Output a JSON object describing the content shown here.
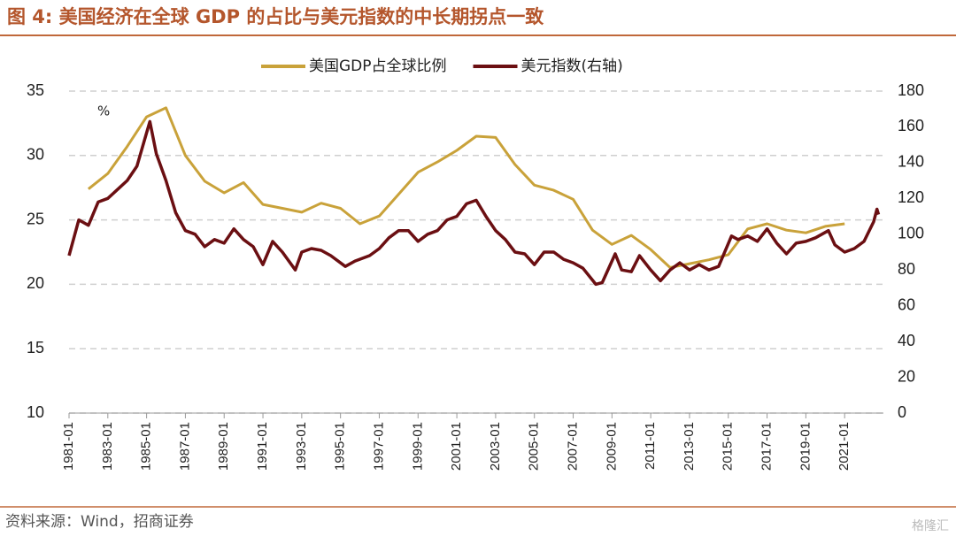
{
  "chart_data": {
    "type": "line",
    "title": "图 4:  美国经济在全球 GDP 的占比与美元指数的中长期拐点一致",
    "unit_label": "%",
    "source": "资料来源：Wind，招商证券",
    "watermark": "格隆汇",
    "xlim": [
      "1981-01",
      "2023-01"
    ],
    "xticks": [
      "1981-01",
      "1983-01",
      "1985-01",
      "1987-01",
      "1989-01",
      "1991-01",
      "1993-01",
      "1995-01",
      "1997-01",
      "1999-01",
      "2001-01",
      "2003-01",
      "2005-01",
      "2007-01",
      "2009-01",
      "2011-01",
      "2013-01",
      "2015-01",
      "2017-01",
      "2019-01",
      "2021-01"
    ],
    "ylim": [
      10,
      35
    ],
    "yticks": [
      10,
      15,
      20,
      25,
      30,
      35
    ],
    "y2lim": [
      0,
      180
    ],
    "y2ticks": [
      0,
      20,
      40,
      60,
      80,
      100,
      120,
      140,
      160,
      180
    ],
    "grid": true,
    "series": [
      {
        "name": "美国GDP占全球比例",
        "color": "#c9a23a",
        "axis": "y",
        "x": [
          "1982-01",
          "1983-01",
          "1984-01",
          "1985-01",
          "1986-01",
          "1987-01",
          "1988-01",
          "1989-01",
          "1990-01",
          "1991-01",
          "1992-01",
          "1993-01",
          "1994-01",
          "1995-01",
          "1996-01",
          "1997-01",
          "1998-01",
          "1999-01",
          "2000-01",
          "2001-01",
          "2002-01",
          "2003-01",
          "2004-01",
          "2005-01",
          "2006-01",
          "2007-01",
          "2008-01",
          "2009-01",
          "2010-01",
          "2011-01",
          "2012-01",
          "2013-01",
          "2014-01",
          "2015-01",
          "2016-01",
          "2017-01",
          "2018-01",
          "2019-01",
          "2020-01",
          "2021-01"
        ],
        "values": [
          27.4,
          28.6,
          30.7,
          33.0,
          33.7,
          30.0,
          28.0,
          27.1,
          27.9,
          26.2,
          25.9,
          25.6,
          26.3,
          25.9,
          24.7,
          25.3,
          27.0,
          28.7,
          29.5,
          30.4,
          31.5,
          31.4,
          29.3,
          27.7,
          27.3,
          26.6,
          24.2,
          23.1,
          23.8,
          22.7,
          21.3,
          21.6,
          21.9,
          22.3,
          24.3,
          24.7,
          24.2,
          24.0,
          24.5,
          24.7
        ]
      },
      {
        "name": "美元指数(右轴)",
        "color": "#6b0f12",
        "axis": "y2",
        "x": [
          "1981-01",
          "1981-07",
          "1982-01",
          "1982-07",
          "1983-01",
          "1983-07",
          "1984-01",
          "1984-07",
          "1985-03",
          "1985-07",
          "1986-01",
          "1986-07",
          "1987-01",
          "1987-07",
          "1988-01",
          "1988-07",
          "1989-01",
          "1989-07",
          "1990-01",
          "1990-07",
          "1991-01",
          "1991-07",
          "1992-01",
          "1992-09",
          "1993-01",
          "1993-07",
          "1994-01",
          "1994-07",
          "1995-04",
          "1995-10",
          "1996-07",
          "1997-01",
          "1997-07",
          "1998-01",
          "1998-07",
          "1999-01",
          "1999-07",
          "2000-01",
          "2000-07",
          "2001-01",
          "2001-07",
          "2002-01",
          "2002-07",
          "2003-01",
          "2003-07",
          "2004-01",
          "2004-07",
          "2005-01",
          "2005-07",
          "2006-01",
          "2006-07",
          "2007-01",
          "2007-07",
          "2008-03",
          "2008-07",
          "2009-03",
          "2009-07",
          "2010-01",
          "2010-06",
          "2011-01",
          "2011-07",
          "2012-01",
          "2012-07",
          "2013-01",
          "2013-07",
          "2014-01",
          "2014-07",
          "2015-03",
          "2015-07",
          "2016-01",
          "2016-07",
          "2017-01",
          "2017-07",
          "2018-01",
          "2018-07",
          "2019-01",
          "2019-07",
          "2020-03",
          "2020-07",
          "2021-01",
          "2021-07",
          "2022-01",
          "2022-07",
          "2022-09",
          "2022-10"
        ],
        "values": [
          88,
          108,
          105,
          118,
          120,
          125,
          130,
          138,
          163,
          145,
          130,
          112,
          102,
          100,
          93,
          97,
          95,
          103,
          97,
          93,
          83,
          96,
          90,
          80,
          90,
          92,
          91,
          88,
          82,
          85,
          88,
          92,
          98,
          102,
          102,
          96,
          100,
          102,
          108,
          110,
          117,
          119,
          110,
          102,
          97,
          90,
          89,
          83,
          90,
          90,
          86,
          84,
          81,
          72,
          73,
          89,
          80,
          79,
          88,
          80,
          74,
          80,
          84,
          80,
          83,
          80,
          82,
          99,
          97,
          99,
          96,
          103,
          95,
          89,
          95,
          96,
          98,
          102,
          94,
          90,
          92,
          96,
          107,
          114,
          111
        ]
      }
    ]
  }
}
